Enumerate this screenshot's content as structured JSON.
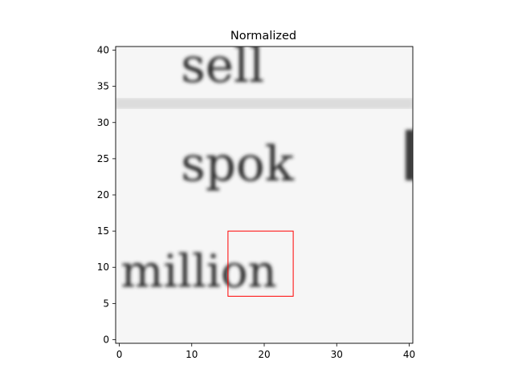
{
  "chart_data": {
    "type": "heatmap",
    "title": "Normalized",
    "xlabel": "",
    "ylabel": "",
    "xlim": [
      -0.5,
      40.5
    ],
    "ylim": [
      40.5,
      -0.5
    ],
    "x_ticks": [
      0,
      10,
      20,
      30,
      40
    ],
    "y_ticks": [
      0,
      5,
      10,
      15,
      20,
      25,
      30,
      35,
      40
    ],
    "grid": false,
    "colormap": "gray",
    "image_content": {
      "text_lines": [
        {
          "text": "million",
          "row_range": [
            0,
            8
          ]
        },
        {
          "text": "spok",
          "row_range": [
            14,
            23
          ]
        },
        {
          "text": "sell",
          "row_range": [
            27,
            35
          ]
        }
      ]
    },
    "annotations": [
      {
        "type": "rectangle",
        "x": 15,
        "y": 15,
        "width": 9,
        "height": 9,
        "color": "#ff0000"
      }
    ]
  }
}
